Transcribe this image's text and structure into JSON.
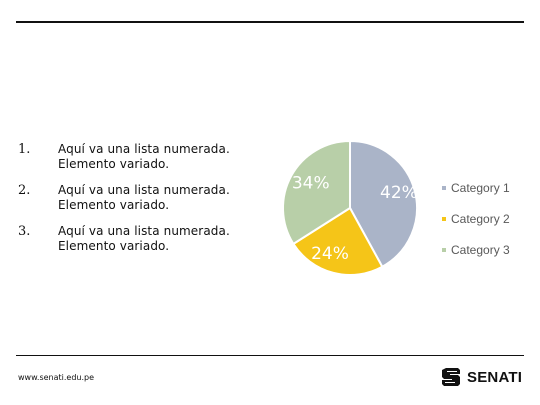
{
  "list": {
    "items": [
      {
        "number": "1.",
        "line1": "Aquí va una lista numerada.",
        "line2": "Elemento variado."
      },
      {
        "number": "2.",
        "line1": "Aquí va una lista numerada.",
        "line2": "Elemento variado."
      },
      {
        "number": "3.",
        "line1": "Aquí va una lista numerada.",
        "line2": "Elemento variado."
      }
    ]
  },
  "chart_data": {
    "type": "pie",
    "categories": [
      "Category 1",
      "Category 2",
      "Category 3"
    ],
    "values": [
      42,
      24,
      34
    ],
    "labels": [
      "42%",
      "24%",
      "34%"
    ],
    "colors": [
      "#aab4c8",
      "#f5c518",
      "#b8cfa8"
    ],
    "legend_position": "right"
  },
  "footer": {
    "url": "www.senati.edu.pe",
    "brand": "SENATI"
  }
}
